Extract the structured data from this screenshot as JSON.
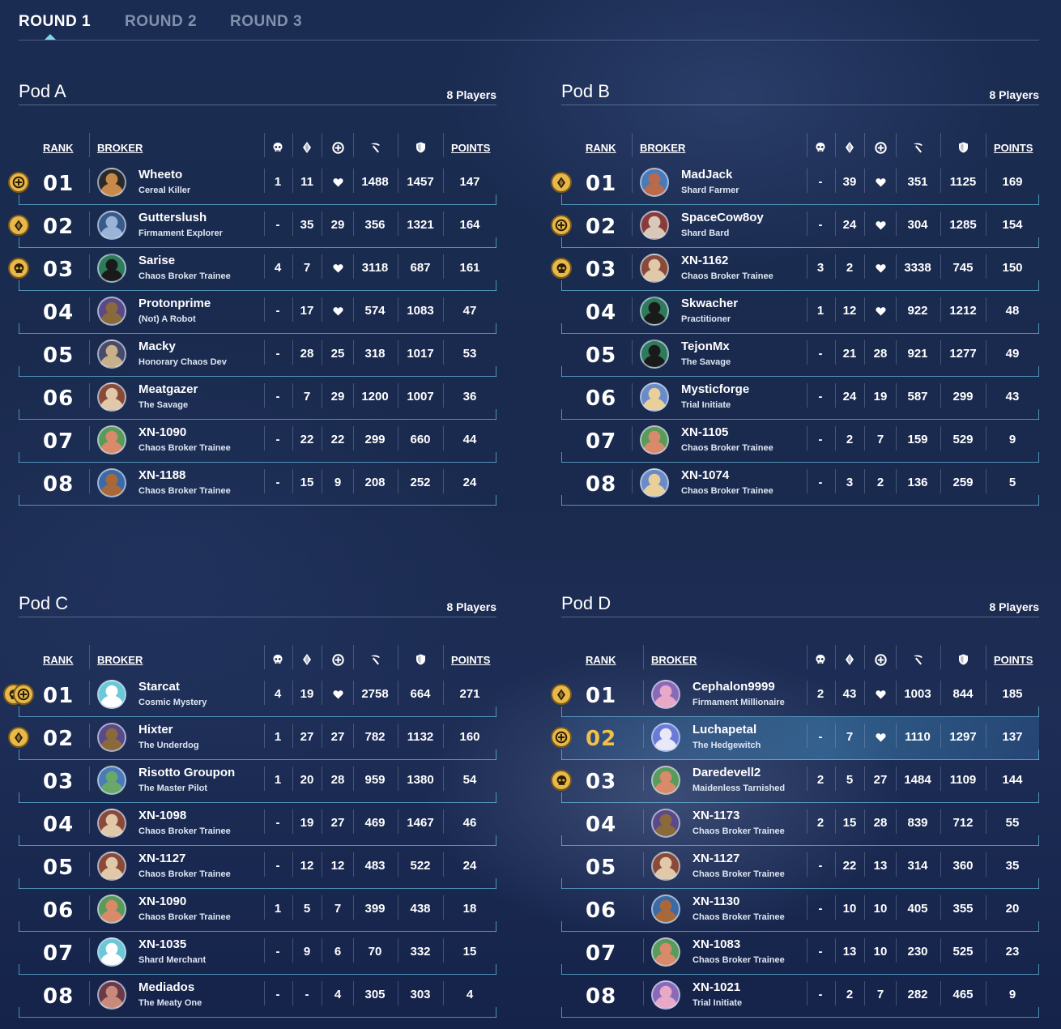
{
  "tabs": [
    {
      "label": "ROUND 1",
      "active": true
    },
    {
      "label": "ROUND 2",
      "active": false
    },
    {
      "label": "ROUND 3",
      "active": false
    }
  ],
  "headers": {
    "rank": "RANK",
    "broker": "BROKER",
    "points": "POINTS"
  },
  "header_icons": [
    "skull-icon",
    "crystal-icon",
    "plus-circle-icon",
    "pickaxe-icon",
    "shield-icon"
  ],
  "colors": {
    "accent": "#7fd4ee",
    "gold": "#f2c04a",
    "badge": "#e8b84a"
  },
  "pods": [
    {
      "title": "Pod A",
      "count": "8 Players",
      "rows": [
        {
          "rank": "01",
          "name": "Wheeto",
          "title": "Cereal Killer",
          "badges": [
            "plus"
          ],
          "stats": [
            "1",
            "11",
            "heart",
            "1488",
            "1457",
            "147"
          ],
          "avatar": [
            "#2a2a2a",
            "#c88a4a"
          ]
        },
        {
          "rank": "02",
          "name": "Gutterslush",
          "title": "Firmament Explorer",
          "badges": [
            "crystal"
          ],
          "stats": [
            "-",
            "35",
            "29",
            "356",
            "1321",
            "164"
          ],
          "avatar": [
            "#3a5a8a",
            "#9ab4d8"
          ]
        },
        {
          "rank": "03",
          "name": "Sarise",
          "title": "Chaos Broker Trainee",
          "badges": [
            "skull"
          ],
          "stats": [
            "4",
            "7",
            "heart",
            "3118",
            "687",
            "161"
          ],
          "avatar": [
            "#2e7a5a",
            "#1a1a1a"
          ]
        },
        {
          "rank": "04",
          "name": "Protonprime",
          "title": "(Not) A Robot",
          "badges": [],
          "stats": [
            "-",
            "17",
            "heart",
            "574",
            "1083",
            "47"
          ],
          "avatar": [
            "#5a4a8a",
            "#8a6a3a"
          ]
        },
        {
          "rank": "05",
          "name": "Macky",
          "title": "Honorary Chaos Dev",
          "badges": [],
          "stats": [
            "-",
            "28",
            "25",
            "318",
            "1017",
            "53"
          ],
          "avatar": [
            "#4a4a6a",
            "#c8b08a"
          ]
        },
        {
          "rank": "06",
          "name": "Meatgazer",
          "title": "The Savage",
          "badges": [],
          "stats": [
            "-",
            "7",
            "29",
            "1200",
            "1007",
            "36"
          ],
          "avatar": [
            "#8a4a3a",
            "#e0c8a8"
          ]
        },
        {
          "rank": "07",
          "name": "XN-1090",
          "title": "Chaos Broker Trainee",
          "badges": [],
          "stats": [
            "-",
            "22",
            "22",
            "299",
            "660",
            "44"
          ],
          "avatar": [
            "#5a9a5a",
            "#d88a6a"
          ]
        },
        {
          "rank": "08",
          "name": "XN-1188",
          "title": "Chaos Broker Trainee",
          "badges": [],
          "stats": [
            "-",
            "15",
            "9",
            "208",
            "252",
            "24"
          ],
          "avatar": [
            "#3a6aa8",
            "#a8683a"
          ]
        }
      ]
    },
    {
      "title": "Pod B",
      "count": "8 Players",
      "rows": [
        {
          "rank": "01",
          "name": "MadJack",
          "title": "Shard Farmer",
          "badges": [
            "crystal"
          ],
          "stats": [
            "-",
            "39",
            "heart",
            "351",
            "1125",
            "169"
          ],
          "avatar": [
            "#4a7ab8",
            "#b86a4a"
          ]
        },
        {
          "rank": "02",
          "name": "SpaceCow8oy",
          "title": "Shard Bard",
          "badges": [
            "plus"
          ],
          "stats": [
            "-",
            "24",
            "heart",
            "304",
            "1285",
            "154"
          ],
          "avatar": [
            "#8a3a3a",
            "#d8c8b8"
          ]
        },
        {
          "rank": "03",
          "name": "XN-1162",
          "title": "Chaos Broker Trainee",
          "badges": [
            "skull"
          ],
          "stats": [
            "3",
            "2",
            "heart",
            "3338",
            "745",
            "150"
          ],
          "avatar": [
            "#8a4a3a",
            "#e0c8a8"
          ]
        },
        {
          "rank": "04",
          "name": "Skwacher",
          "title": "Practitioner",
          "badges": [],
          "stats": [
            "1",
            "12",
            "heart",
            "922",
            "1212",
            "48"
          ],
          "avatar": [
            "#2e7a5a",
            "#1a1a1a"
          ]
        },
        {
          "rank": "05",
          "name": "TejonMx",
          "title": "The Savage",
          "badges": [],
          "stats": [
            "-",
            "21",
            "28",
            "921",
            "1277",
            "49"
          ],
          "avatar": [
            "#2e7a5a",
            "#1a1a1a"
          ]
        },
        {
          "rank": "06",
          "name": "Mysticforge",
          "title": "Trial Initiate",
          "badges": [],
          "stats": [
            "-",
            "24",
            "19",
            "587",
            "299",
            "43"
          ],
          "avatar": [
            "#6a8ac8",
            "#e8d098"
          ]
        },
        {
          "rank": "07",
          "name": "XN-1105",
          "title": "Chaos Broker Trainee",
          "badges": [],
          "stats": [
            "-",
            "2",
            "7",
            "159",
            "529",
            "9"
          ],
          "avatar": [
            "#5a9a5a",
            "#d88a6a"
          ]
        },
        {
          "rank": "08",
          "name": "XN-1074",
          "title": "Chaos Broker Trainee",
          "badges": [],
          "stats": [
            "-",
            "3",
            "2",
            "136",
            "259",
            "5"
          ],
          "avatar": [
            "#6a8ac8",
            "#e8d098"
          ]
        }
      ]
    },
    {
      "title": "Pod C",
      "count": "8 Players",
      "rows": [
        {
          "rank": "01",
          "name": "Starcat",
          "title": "Cosmic Mystery",
          "badges": [
            "skull",
            "plus"
          ],
          "stats": [
            "4",
            "19",
            "heart",
            "2758",
            "664",
            "271"
          ],
          "avatar": [
            "#6ac8d8",
            "#ffffff"
          ]
        },
        {
          "rank": "02",
          "name": "Hixter",
          "title": "The Underdog",
          "badges": [
            "crystal"
          ],
          "stats": [
            "1",
            "27",
            "27",
            "782",
            "1132",
            "160"
          ],
          "avatar": [
            "#5a4a8a",
            "#8a6a3a"
          ]
        },
        {
          "rank": "03",
          "name": "Risotto Groupon",
          "title": "The Master Pilot",
          "badges": [],
          "stats": [
            "1",
            "20",
            "28",
            "959",
            "1380",
            "54"
          ],
          "avatar": [
            "#4a7ab8",
            "#6aa86a"
          ]
        },
        {
          "rank": "04",
          "name": "XN-1098",
          "title": "Chaos Broker Trainee",
          "badges": [],
          "stats": [
            "-",
            "19",
            "27",
            "469",
            "1467",
            "46"
          ],
          "avatar": [
            "#8a4a3a",
            "#e0c8a8"
          ]
        },
        {
          "rank": "05",
          "name": "XN-1127",
          "title": "Chaos Broker Trainee",
          "badges": [],
          "stats": [
            "-",
            "12",
            "12",
            "483",
            "522",
            "24"
          ],
          "avatar": [
            "#8a4a3a",
            "#e0c8a8"
          ]
        },
        {
          "rank": "06",
          "name": "XN-1090",
          "title": "Chaos Broker Trainee",
          "badges": [],
          "stats": [
            "1",
            "5",
            "7",
            "399",
            "438",
            "18"
          ],
          "avatar": [
            "#5a9a5a",
            "#d88a6a"
          ]
        },
        {
          "rank": "07",
          "name": "XN-1035",
          "title": "Shard Merchant",
          "badges": [],
          "stats": [
            "-",
            "9",
            "6",
            "70",
            "332",
            "15"
          ],
          "avatar": [
            "#6ac8d8",
            "#ffffff"
          ]
        },
        {
          "rank": "08",
          "name": "Mediados",
          "title": "The Meaty One",
          "badges": [],
          "stats": [
            "-",
            "-",
            "4",
            "305",
            "303",
            "4"
          ],
          "avatar": [
            "#6a3a4a",
            "#c88a7a"
          ]
        }
      ]
    },
    {
      "title": "Pod D",
      "count": "8 Players",
      "rows": [
        {
          "rank": "01",
          "name": "Cephalon9999",
          "title": "Firmament Millionaire",
          "badges": [
            "crystal"
          ],
          "stats": [
            "2",
            "43",
            "heart",
            "1003",
            "844",
            "185"
          ],
          "avatar": [
            "#8a6ab8",
            "#e8a8c8"
          ]
        },
        {
          "rank": "02",
          "name": "Luchapetal",
          "title": "The Hedgewitch",
          "badges": [
            "plus"
          ],
          "stats": [
            "-",
            "7",
            "heart",
            "1110",
            "1297",
            "137"
          ],
          "avatar": [
            "#6a7ad8",
            "#e8e8f8"
          ],
          "highlight": true
        },
        {
          "rank": "03",
          "name": "Daredevell2",
          "title": "Maidenless Tarnished",
          "badges": [
            "skull"
          ],
          "stats": [
            "2",
            "5",
            "27",
            "1484",
            "1109",
            "144"
          ],
          "avatar": [
            "#5a9a5a",
            "#d88a6a"
          ]
        },
        {
          "rank": "04",
          "name": "XN-1173",
          "title": "Chaos Broker Trainee",
          "badges": [],
          "stats": [
            "2",
            "15",
            "28",
            "839",
            "712",
            "55"
          ],
          "avatar": [
            "#5a4a8a",
            "#8a6a3a"
          ]
        },
        {
          "rank": "05",
          "name": "XN-1127",
          "title": "Chaos Broker Trainee",
          "badges": [],
          "stats": [
            "-",
            "22",
            "13",
            "314",
            "360",
            "35"
          ],
          "avatar": [
            "#8a4a3a",
            "#e0c8a8"
          ]
        },
        {
          "rank": "06",
          "name": "XN-1130",
          "title": "Chaos Broker Trainee",
          "badges": [],
          "stats": [
            "-",
            "10",
            "10",
            "405",
            "355",
            "20"
          ],
          "avatar": [
            "#3a6aa8",
            "#a8683a"
          ]
        },
        {
          "rank": "07",
          "name": "XN-1083",
          "title": "Chaos Broker Trainee",
          "badges": [],
          "stats": [
            "-",
            "13",
            "10",
            "230",
            "525",
            "23"
          ],
          "avatar": [
            "#5a9a5a",
            "#d88a6a"
          ]
        },
        {
          "rank": "08",
          "name": "XN-1021",
          "title": "Trial Initiate",
          "badges": [],
          "stats": [
            "-",
            "2",
            "7",
            "282",
            "465",
            "9"
          ],
          "avatar": [
            "#8a6ab8",
            "#e8a8c8"
          ]
        }
      ]
    }
  ]
}
